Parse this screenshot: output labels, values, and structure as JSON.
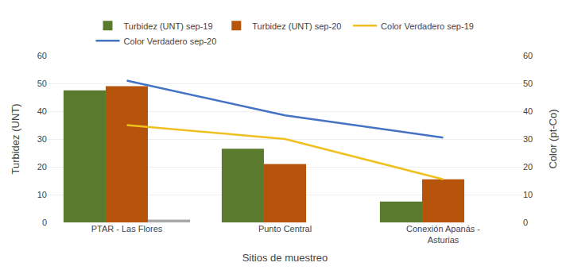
{
  "chart_data": {
    "type": "bar",
    "categories": [
      "PTAR - Las Flores",
      "Punto Central",
      "Conexión Apanás -\nAsturias"
    ],
    "xlabel": "Sitios de muestreo",
    "ylabel": "Turbidez (UNT)",
    "y2label": "Color (pt-Co)",
    "ylim": [
      0,
      60
    ],
    "yticks": [
      0,
      10,
      20,
      30,
      40,
      50,
      60
    ],
    "y2lim": [
      0,
      60
    ],
    "y2ticks": [
      0,
      10,
      20,
      30,
      40,
      50,
      60
    ],
    "grid": true,
    "legend": "top",
    "series": [
      {
        "name": "Turbidez (UNT) sep-19",
        "type": "bar",
        "color": "#5a7a2e",
        "values": [
          47.5,
          26.5,
          7.5
        ]
      },
      {
        "name": "Turbidez (UNT) sep-20",
        "type": "bar",
        "color": "#b5540a",
        "values": [
          49.0,
          21.0,
          15.5
        ]
      },
      {
        "type": "bar",
        "color": "#a8a8a8",
        "values": [
          1.0,
          null,
          null
        ]
      },
      {
        "name": "Color Verdadero sep-19",
        "type": "line",
        "axis": "y2",
        "color": "#f0c020",
        "values": [
          35.0,
          30.0,
          15.5
        ]
      },
      {
        "name": "Color Verdadero sep-20",
        "type": "line",
        "axis": "y2",
        "color": "#4472c4",
        "values": [
          51.0,
          38.5,
          30.5
        ]
      }
    ]
  }
}
